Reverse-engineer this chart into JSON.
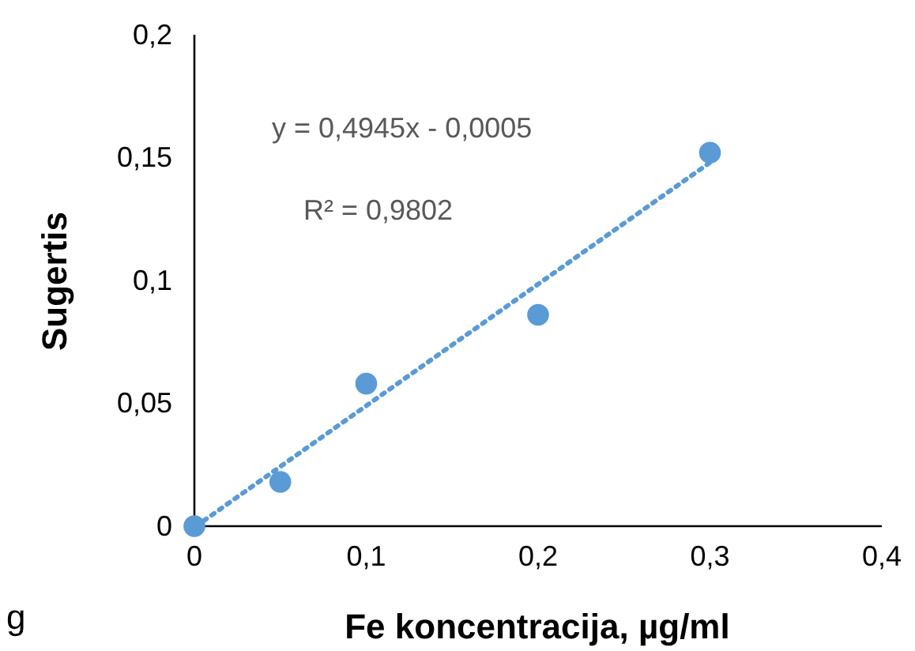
{
  "chart_data": {
    "type": "scatter",
    "xlabel": "Fe koncentracija, µg/ml",
    "ylabel": "Sugertis",
    "xlim": [
      0,
      0.4
    ],
    "ylim": [
      0,
      0.2
    ],
    "xticks": [
      {
        "value": 0,
        "label": "0"
      },
      {
        "value": 0.1,
        "label": "0,1"
      },
      {
        "value": 0.2,
        "label": "0,2"
      },
      {
        "value": 0.3,
        "label": "0,3"
      },
      {
        "value": 0.4,
        "label": "0,4"
      }
    ],
    "yticks": [
      {
        "value": 0,
        "label": "0"
      },
      {
        "value": 0.05,
        "label": "0,05"
      },
      {
        "value": 0.1,
        "label": "0,1"
      },
      {
        "value": 0.15,
        "label": "0,15"
      },
      {
        "value": 0.2,
        "label": "0,2"
      }
    ],
    "grid": false,
    "marker": "circle",
    "series": [
      {
        "color": "#5b9bd5",
        "x": [
          0,
          0.05,
          0.1,
          0.2,
          0.3
        ],
        "values": [
          0,
          0.018,
          0.058,
          0.086,
          0.152
        ]
      },
      {
        "type": "line",
        "color": "#5b9bd5",
        "line_style": "dotted",
        "marker": "none",
        "x": [
          0.001,
          0.3
        ],
        "values": [
          0,
          0.148
        ]
      }
    ],
    "annotations": [
      "y = 0,4945x - 0,0005",
      "R² = 0,9802",
      "g"
    ]
  }
}
